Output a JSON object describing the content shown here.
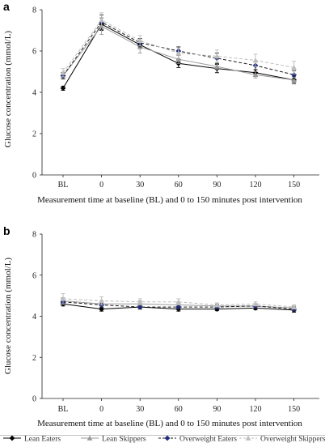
{
  "panels": [
    {
      "letter": "a",
      "chart_data": {
        "type": "line",
        "categories": [
          "BL",
          "0",
          "30",
          "60",
          "90",
          "120",
          "150"
        ],
        "ylabel": "Glucose concentration (mmol/L)",
        "xlabel": "Measurement time at baseline (BL) and 0 to 150 minutes post intervention",
        "ylim": [
          0,
          8
        ],
        "yticks": [
          0,
          2,
          4,
          6,
          8
        ],
        "series": [
          {
            "name": "Lean Eaters",
            "values": [
              4.2,
              7.3,
              6.3,
              5.4,
              5.15,
              4.95,
              4.6
            ],
            "err": [
              0.1,
              0.3,
              0.15,
              0.2,
              0.2,
              0.15,
              0.15
            ]
          },
          {
            "name": "Lean Skippers",
            "values": [
              4.8,
              7.2,
              6.2,
              5.6,
              5.25,
              4.85,
              4.6
            ],
            "err": [
              0.15,
              0.4,
              0.3,
              0.2,
              0.15,
              0.15,
              0.2
            ]
          },
          {
            "name": "Overweight Eaters",
            "values": [
              4.8,
              7.4,
              6.4,
              6.0,
              5.65,
              5.3,
              4.85
            ],
            "err": [
              0.15,
              0.35,
              0.2,
              0.2,
              0.25,
              0.2,
              0.2
            ]
          },
          {
            "name": "Overweight Skippers",
            "values": [
              4.95,
              7.5,
              6.5,
              5.9,
              5.75,
              5.55,
              5.2
            ],
            "err": [
              0.2,
              0.35,
              0.25,
              0.25,
              0.3,
              0.3,
              0.3
            ]
          }
        ]
      }
    },
    {
      "letter": "b",
      "chart_data": {
        "type": "line",
        "categories": [
          "BL",
          "0",
          "30",
          "60",
          "90",
          "120",
          "150"
        ],
        "ylabel": "Glucose concentration (mmol/L)",
        "xlabel": "Measurement time at baseline (BL) and 0 to 150 minutes post intervention",
        "ylim": [
          0,
          8
        ],
        "yticks": [
          0,
          2,
          4,
          6,
          8
        ],
        "series": [
          {
            "name": "Lean Eaters",
            "values": [
              4.6,
              4.35,
              4.45,
              4.35,
              4.35,
              4.4,
              4.3
            ],
            "err": [
              0.1,
              0.1,
              0.1,
              0.1,
              0.08,
              0.08,
              0.1
            ]
          },
          {
            "name": "Lean Skippers",
            "values": [
              4.75,
              4.6,
              4.6,
              4.55,
              4.5,
              4.5,
              4.4
            ],
            "err": [
              0.15,
              0.15,
              0.15,
              0.12,
              0.1,
              0.1,
              0.1
            ]
          },
          {
            "name": "Overweight Eaters",
            "values": [
              4.7,
              4.55,
              4.45,
              4.45,
              4.45,
              4.5,
              4.35
            ],
            "err": [
              0.15,
              0.12,
              0.1,
              0.1,
              0.1,
              0.1,
              0.1
            ]
          },
          {
            "name": "Overweight Skippers",
            "values": [
              4.85,
              4.75,
              4.7,
              4.7,
              4.55,
              4.6,
              4.45
            ],
            "err": [
              0.25,
              0.2,
              0.15,
              0.15,
              0.1,
              0.1,
              0.1
            ]
          }
        ]
      }
    }
  ],
  "series_styles": [
    {
      "name": "Lean Eaters",
      "color": "#000000",
      "dash": "none",
      "marker": "diamond"
    },
    {
      "name": "Lean Skippers",
      "color": "#9a9a9a",
      "dash": "none",
      "marker": "triangle"
    },
    {
      "name": "Overweight Eaters",
      "color": "#1a1a1a",
      "marker_color": "#1f2a7a",
      "dash": "dashed",
      "marker": "diamond"
    },
    {
      "name": "Overweight Skippers",
      "color": "#bdbdbd",
      "dash": "dashed",
      "marker": "triangle"
    }
  ],
  "legend": {
    "items": [
      "Lean Eaters",
      "Lean Skippers",
      "Overweight Eaters",
      "Overweight Skippers"
    ],
    "placement": "bottom"
  },
  "grid": false
}
